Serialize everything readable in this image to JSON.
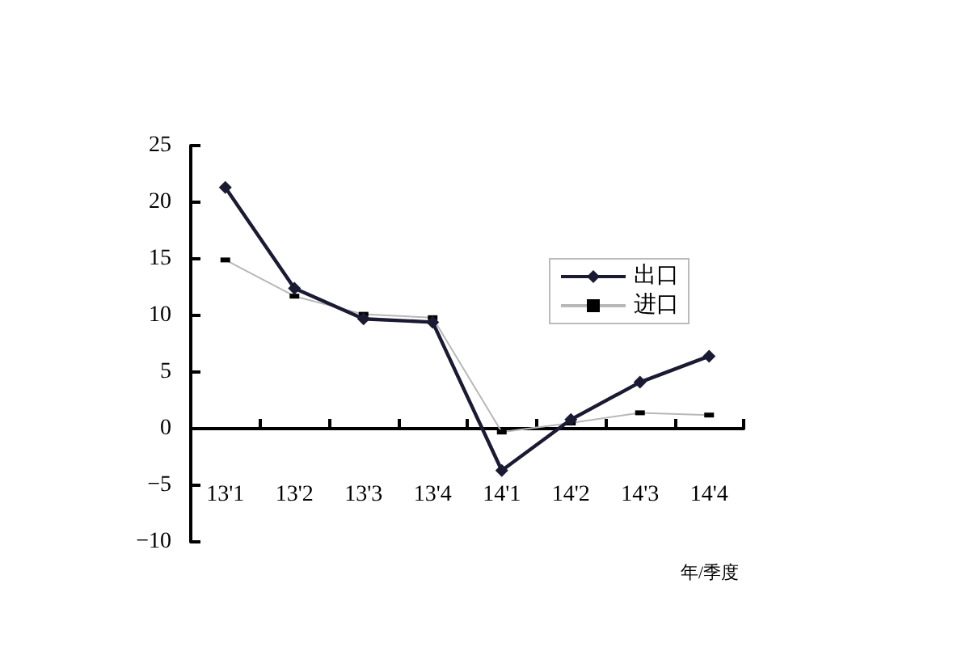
{
  "chart_data": {
    "type": "line",
    "xlabel": "年/季度",
    "categories": [
      "13'1",
      "13'2",
      "13'3",
      "13'4",
      "14'1",
      "14'2",
      "14'3",
      "14'4"
    ],
    "series": [
      {
        "name": "出口",
        "color": "#1a1a33",
        "marker": "diamond",
        "values": [
          21.3,
          12.4,
          9.7,
          9.4,
          -3.7,
          0.8,
          4.1,
          6.4
        ]
      },
      {
        "name": "进口",
        "color": "#b8b8b8",
        "marker": "square",
        "values": [
          14.9,
          11.7,
          10.1,
          9.8,
          -0.3,
          0.5,
          1.4,
          1.2
        ]
      }
    ],
    "ylim": [
      -10,
      25
    ],
    "yticks": [
      -10,
      -5,
      0,
      5,
      10,
      15,
      20,
      25
    ],
    "legend": "right"
  }
}
